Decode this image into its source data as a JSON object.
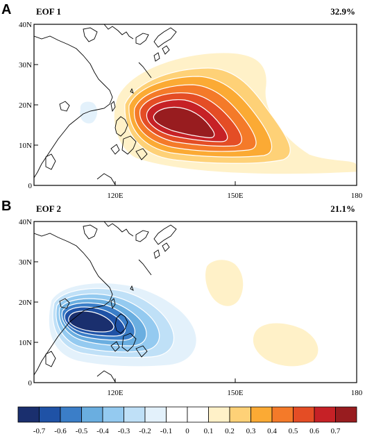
{
  "panels": [
    {
      "letter": "A",
      "title": "EOF 1",
      "variance": "32.9%",
      "y_ticks": [
        "40N",
        "30N",
        "20N",
        "10N",
        "0"
      ],
      "x_ticks": [
        "120E",
        "150E",
        "180"
      ]
    },
    {
      "letter": "B",
      "title": "EOF 2",
      "variance": "21.1%",
      "y_ticks": [
        "40N",
        "30N",
        "20N",
        "10N",
        "0"
      ],
      "x_ticks": [
        "120E",
        "150E",
        "180"
      ]
    }
  ],
  "colorbar": {
    "labels": [
      "-0.7",
      "-0.6",
      "-0.5",
      "-0.4",
      "-0.3",
      "-0.2",
      "-0.1",
      "0",
      "0.1",
      "0.2",
      "0.3",
      "0.4",
      "0.5",
      "0.6",
      "0.7"
    ],
    "colors": [
      "#1a2f6e",
      "#1f52a6",
      "#3b7ec8",
      "#6aaee0",
      "#94caf0",
      "#bfe0f7",
      "#e3f1fb",
      "#ffffff",
      "#ffffff",
      "#fff1c8",
      "#fed177",
      "#fbaa34",
      "#f47a29",
      "#e44d25",
      "#c62126",
      "#981c1f"
    ]
  },
  "colors": {
    "land_outline": "#000000",
    "contour_line": "#ffffff"
  }
}
